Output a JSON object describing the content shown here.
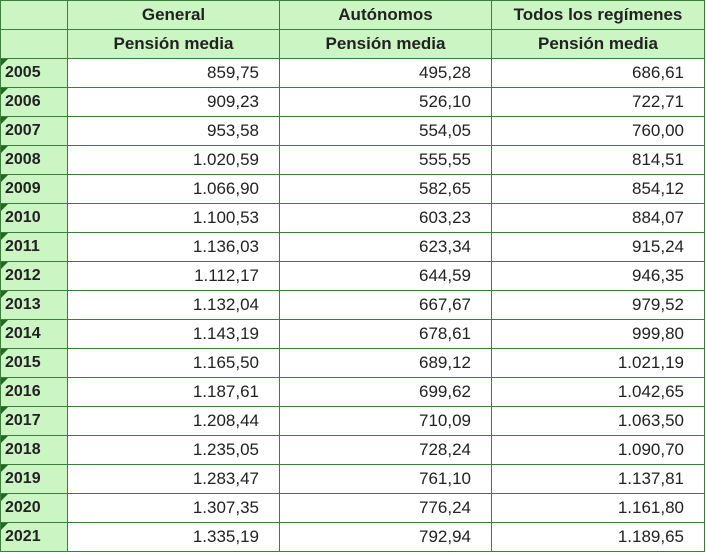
{
  "colors": {
    "header_bg": "#ccf5c4",
    "border": "#3c7d3c",
    "indicator": "#1f6b1f"
  },
  "header": {
    "groups": [
      "General",
      "Autónomos",
      "Todos los regímenes"
    ],
    "subheaders": [
      "Pensión media",
      "Pensión media",
      "Pensión media"
    ]
  },
  "rows": [
    {
      "year": "2005",
      "general": "859,75",
      "autonomos": "495,28",
      "todos": "686,61"
    },
    {
      "year": "2006",
      "general": "909,23",
      "autonomos": "526,10",
      "todos": "722,71"
    },
    {
      "year": "2007",
      "general": "953,58",
      "autonomos": "554,05",
      "todos": "760,00"
    },
    {
      "year": "2008",
      "general": "1.020,59",
      "autonomos": "555,55",
      "todos": "814,51"
    },
    {
      "year": "2009",
      "general": "1.066,90",
      "autonomos": "582,65",
      "todos": "854,12"
    },
    {
      "year": "2010",
      "general": "1.100,53",
      "autonomos": "603,23",
      "todos": "884,07"
    },
    {
      "year": "2011",
      "general": "1.136,03",
      "autonomos": "623,34",
      "todos": "915,24"
    },
    {
      "year": "2012",
      "general": "1.112,17",
      "autonomos": "644,59",
      "todos": "946,35"
    },
    {
      "year": "2013",
      "general": "1.132,04",
      "autonomos": "667,67",
      "todos": "979,52"
    },
    {
      "year": "2014",
      "general": "1.143,19",
      "autonomos": "678,61",
      "todos": "999,80"
    },
    {
      "year": "2015",
      "general": "1.165,50",
      "autonomos": "689,12",
      "todos": "1.021,19"
    },
    {
      "year": "2016",
      "general": "1.187,61",
      "autonomos": "699,62",
      "todos": "1.042,65"
    },
    {
      "year": "2017",
      "general": "1.208,44",
      "autonomos": "710,09",
      "todos": "1.063,50"
    },
    {
      "year": "2018",
      "general": "1.235,05",
      "autonomos": "728,24",
      "todos": "1.090,70"
    },
    {
      "year": "2019",
      "general": "1.283,47",
      "autonomos": "761,10",
      "todos": "1.137,81"
    },
    {
      "year": "2020",
      "general": "1.307,35",
      "autonomos": "776,24",
      "todos": "1.161,80"
    },
    {
      "year": "2021",
      "general": "1.335,19",
      "autonomos": "792,94",
      "todos": "1.189,65"
    }
  ]
}
